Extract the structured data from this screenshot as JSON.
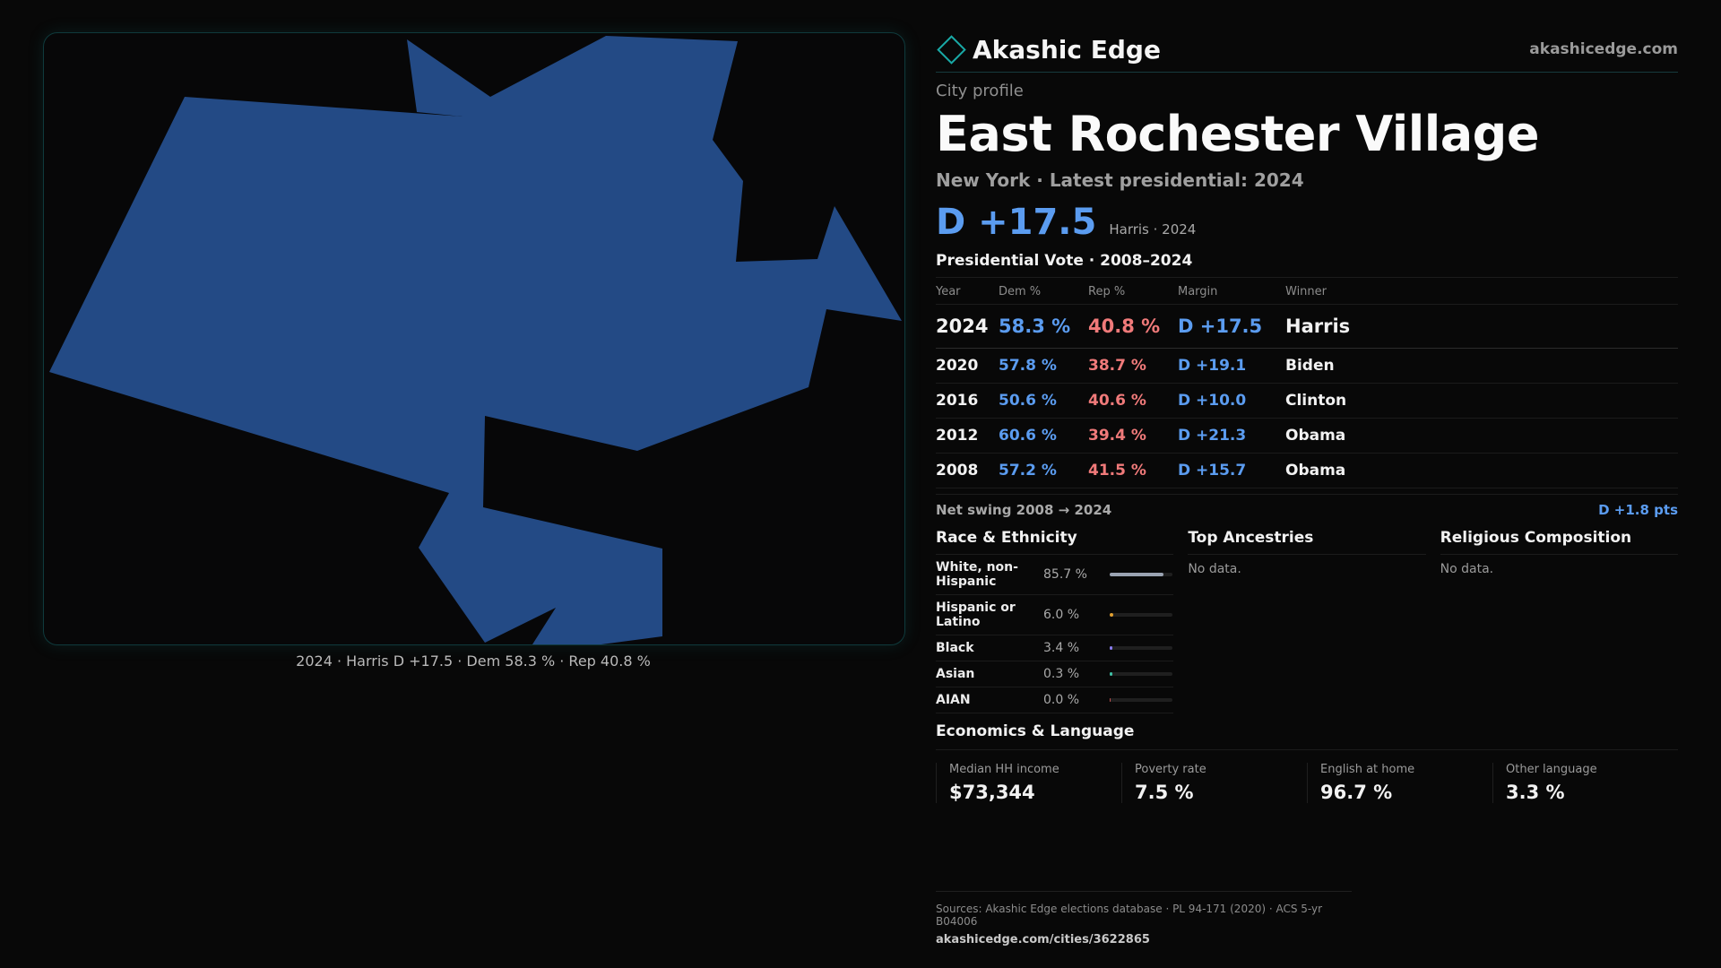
{
  "map": {
    "fill_color": "#234a85",
    "caption": "2024 · Harris D +17.5 · Dem 58.3 % · Rep 40.8 %"
  },
  "header": {
    "brand": "Akashic Edge",
    "site": "akashicedge.com"
  },
  "profile": {
    "kicker": "City profile",
    "title": "East Rochester Village",
    "subline": "New York  · Latest presidential: 2024",
    "margin": "D +17.5",
    "margin_note": "Harris · 2024"
  },
  "vote_table": {
    "title": "Presidential Vote · 2008–2024",
    "headers": [
      "Year",
      "Dem %",
      "Rep %",
      "Margin",
      "Winner"
    ],
    "rows": [
      {
        "year": "2024",
        "dem": "58.3 %",
        "rep": "40.8 %",
        "margin": "D +17.5",
        "winner": "Harris"
      },
      {
        "year": "2020",
        "dem": "57.8 %",
        "rep": "38.7 %",
        "margin": "D +19.1",
        "winner": "Biden"
      },
      {
        "year": "2016",
        "dem": "50.6 %",
        "rep": "40.6 %",
        "margin": "D +10.0",
        "winner": "Clinton"
      },
      {
        "year": "2012",
        "dem": "60.6 %",
        "rep": "39.4 %",
        "margin": "D +21.3",
        "winner": "Obama"
      },
      {
        "year": "2008",
        "dem": "57.2 %",
        "rep": "41.5 %",
        "margin": "D +15.7",
        "winner": "Obama"
      }
    ],
    "swing_label": "Net swing 2008 → 2024",
    "swing_value": "D +1.8 pts"
  },
  "race": {
    "title": "Race & Ethnicity",
    "rows": [
      {
        "label": "White, non-Hispanic",
        "pct": "85.7 %",
        "share": 0.857,
        "color": "#9aa3b2"
      },
      {
        "label": "Hispanic or Latino",
        "pct": "6.0 %",
        "share": 0.06,
        "color": "#e0a030"
      },
      {
        "label": "Black",
        "pct": "3.4 %",
        "share": 0.034,
        "color": "#8a7cf0"
      },
      {
        "label": "Asian",
        "pct": "0.3 %",
        "share": 0.003,
        "color": "#3fc1a5"
      },
      {
        "label": "AIAN",
        "pct": "0.0 %",
        "share": 0.0,
        "color": "#c05050"
      }
    ]
  },
  "ancestries": {
    "title": "Top Ancestries",
    "empty": "No data."
  },
  "religion": {
    "title": "Religious Composition",
    "empty": "No data."
  },
  "economics": {
    "title": "Economics & Language",
    "items": [
      {
        "label": "Median HH income",
        "value": "$73,344"
      },
      {
        "label": "Poverty rate",
        "value": "7.5 %"
      },
      {
        "label": "English at home",
        "value": "96.7 %"
      },
      {
        "label": "Other language",
        "value": "3.3 %"
      }
    ]
  },
  "footer": {
    "sources": "Sources: Akashic Edge elections database · PL 94-171 (2020) · ACS 5-yr B04006",
    "url": "akashicedge.com/cities/3622865"
  }
}
